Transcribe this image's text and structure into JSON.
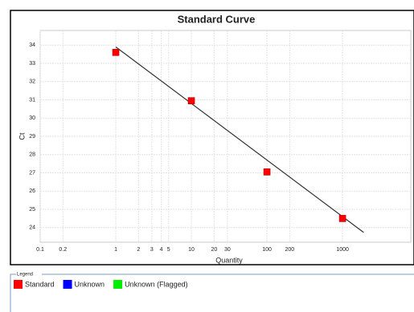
{
  "chart_data": {
    "type": "scatter",
    "title": "Standard Curve",
    "x_label": "Quantity",
    "y_label": "Ct",
    "x_scale": "log",
    "xlim": [
      0.1,
      8000
    ],
    "ylim": [
      23.2,
      34.8
    ],
    "xticks": [
      0.1,
      0.2,
      1,
      2,
      3,
      4,
      5,
      10,
      20,
      30,
      100,
      200,
      1000
    ],
    "yticks": [
      24,
      25,
      26,
      27,
      28,
      29,
      30,
      31,
      32,
      33,
      34
    ],
    "grid": true,
    "series": [
      {
        "name": "Standard",
        "color": "#ff0000",
        "x": [
          1,
          10,
          100,
          1000
        ],
        "values": [
          33.6,
          30.95,
          27.05,
          24.5
        ]
      },
      {
        "name": "Unknown",
        "color": "#0000ff",
        "x": [],
        "values": []
      },
      {
        "name": "Unknown (Flagged)",
        "color": "#00ee00",
        "x": [],
        "values": []
      }
    ],
    "fit_line": {
      "x": [
        1,
        1900
      ],
      "values": [
        33.9,
        23.74
      ],
      "color": "#333333"
    },
    "legend_title": "Legend"
  }
}
